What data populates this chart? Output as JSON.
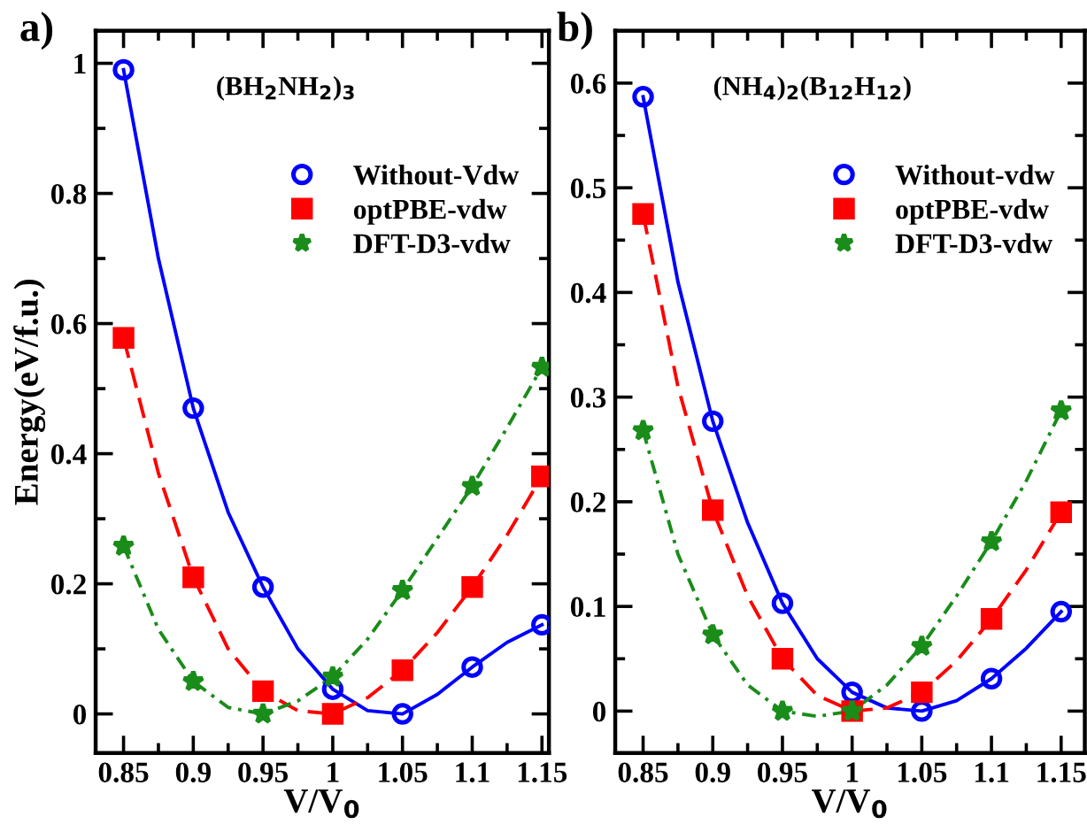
{
  "chart_data": [
    {
      "type": "scatter",
      "title": "a)",
      "ylabel": "Energy(eV/f.u.)",
      "xlabel": "V/V$_{0}$",
      "annotations": [
        "(BH$_{2}$NH$_{2}$)$_{3}$"
      ],
      "x": [
        0.85,
        0.9,
        0.95,
        1.0,
        1.05,
        1.1,
        1.15
      ],
      "series": [
        {
          "name": "Without-Vdw",
          "color": "#0000ff",
          "marker": "circle",
          "values": [
            0.99,
            0.47,
            0.195,
            0.038,
            0.0,
            0.072,
            0.137
          ]
        },
        {
          "name": "optPBE-vdw",
          "color": "#ff0000",
          "marker": "square",
          "values": [
            0.578,
            0.21,
            0.035,
            0.0,
            0.067,
            0.195,
            0.365
          ]
        },
        {
          "name": "DFT-D3-vdw",
          "color": "#1a8c1a",
          "marker": "star",
          "values": [
            0.258,
            0.05,
            0.0,
            0.057,
            0.19,
            0.35,
            0.533
          ]
        },
        {
          "type": "line",
          "color": "#0000ff",
          "line_style": "solid",
          "x": [
            0.85,
            0.875,
            0.9,
            0.925,
            0.95,
            0.975,
            1.0,
            1.025,
            1.05,
            1.075,
            1.1,
            1.125,
            1.15
          ],
          "values": [
            0.99,
            0.7,
            0.47,
            0.31,
            0.195,
            0.1,
            0.038,
            0.005,
            0.0,
            0.03,
            0.072,
            0.11,
            0.137
          ]
        },
        {
          "type": "line",
          "color": "#ff0000",
          "line_style": "dashed",
          "x": [
            0.85,
            0.875,
            0.9,
            0.925,
            0.95,
            0.975,
            1.0,
            1.025,
            1.05,
            1.075,
            1.1,
            1.125,
            1.15
          ],
          "values": [
            0.578,
            0.37,
            0.21,
            0.1,
            0.035,
            0.005,
            0.0,
            0.025,
            0.067,
            0.125,
            0.195,
            0.275,
            0.365
          ]
        },
        {
          "type": "line",
          "color": "#1a8c1a",
          "line_style": "dotted",
          "x": [
            0.85,
            0.875,
            0.9,
            0.925,
            0.95,
            0.975,
            1.0,
            1.025,
            1.05,
            1.075,
            1.1,
            1.125,
            1.15
          ],
          "values": [
            0.258,
            0.13,
            0.05,
            0.01,
            0.0,
            0.02,
            0.057,
            0.115,
            0.19,
            0.27,
            0.35,
            0.44,
            0.533
          ]
        }
      ],
      "xlim": [
        0.83,
        1.155
      ],
      "xticks": [
        0.85,
        0.9,
        0.95,
        1,
        1.05,
        1.1,
        1.15
      ],
      "ylim": [
        -0.06,
        1.05
      ],
      "yticks": [
        0,
        0.2,
        0.4,
        0.6,
        0.8,
        1
      ],
      "grid": false,
      "legend": "top right"
    },
    {
      "type": "scatter",
      "title": "b)",
      "xlabel": "V/V$_{0}$",
      "annotations": [
        "(NH$_{4}$)$_{2}$(B$_{12}$H$_{12}$)"
      ],
      "x": [
        0.85,
        0.9,
        0.95,
        1.0,
        1.05,
        1.1,
        1.15
      ],
      "series": [
        {
          "name": "Without-vdw",
          "color": "#0000ff",
          "marker": "circle",
          "values": [
            0.587,
            0.277,
            0.103,
            0.018,
            0.0,
            0.031,
            0.095
          ]
        },
        {
          "name": "optPBE-vdw",
          "color": "#ff0000",
          "marker": "square",
          "values": [
            0.475,
            0.192,
            0.05,
            0.0,
            0.018,
            0.088,
            0.19
          ]
        },
        {
          "name": "DFT-D3-vdw",
          "color": "#1a8c1a",
          "marker": "star",
          "values": [
            0.268,
            0.073,
            0.0,
            0.0,
            0.062,
            0.162,
            0.287
          ]
        },
        {
          "type": "line",
          "color": "#0000ff",
          "line_style": "solid",
          "x": [
            0.85,
            0.875,
            0.9,
            0.925,
            0.95,
            0.975,
            1.0,
            1.025,
            1.05,
            1.075,
            1.1,
            1.125,
            1.15
          ],
          "values": [
            0.587,
            0.41,
            0.277,
            0.18,
            0.103,
            0.05,
            0.018,
            0.003,
            0.0,
            0.01,
            0.031,
            0.06,
            0.095
          ]
        },
        {
          "type": "line",
          "color": "#ff0000",
          "line_style": "dashed",
          "x": [
            0.85,
            0.875,
            0.9,
            0.925,
            0.95,
            0.975,
            1.0,
            1.025,
            1.05,
            1.075,
            1.1,
            1.125,
            1.15
          ],
          "values": [
            0.475,
            0.31,
            0.192,
            0.11,
            0.05,
            0.015,
            0.0,
            0.003,
            0.018,
            0.048,
            0.088,
            0.135,
            0.19
          ]
        },
        {
          "type": "line",
          "color": "#1a8c1a",
          "line_style": "dotted",
          "x": [
            0.85,
            0.875,
            0.9,
            0.925,
            0.95,
            0.975,
            1.0,
            1.025,
            1.05,
            1.075,
            1.1,
            1.125,
            1.15
          ],
          "values": [
            0.268,
            0.15,
            0.073,
            0.025,
            0.0,
            -0.005,
            0.0,
            0.025,
            0.062,
            0.11,
            0.162,
            0.22,
            0.287
          ]
        }
      ],
      "xlim": [
        0.83,
        1.167
      ],
      "xticks": [
        0.85,
        0.9,
        0.95,
        1,
        1.05,
        1.1,
        1.15
      ],
      "ylim": [
        -0.04,
        0.65
      ],
      "yticks": [
        0,
        0.1,
        0.2,
        0.3,
        0.4,
        0.5,
        0.6
      ],
      "grid": false,
      "legend": "top right"
    }
  ]
}
